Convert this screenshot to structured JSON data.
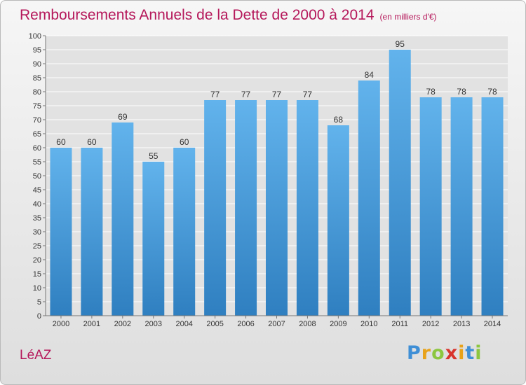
{
  "chart_data": {
    "type": "bar",
    "title": "Remboursements Annuels de la Dette de 2000 à 2014",
    "unit_label": "(en milliers d'€)",
    "categories": [
      "2000",
      "2001",
      "2002",
      "2003",
      "2004",
      "2005",
      "2006",
      "2007",
      "2008",
      "2009",
      "2010",
      "2011",
      "2012",
      "2013",
      "2014"
    ],
    "values": [
      60,
      60,
      69,
      55,
      60,
      77,
      77,
      77,
      77,
      68,
      84,
      95,
      78,
      78,
      78
    ],
    "ylim": [
      0,
      100
    ],
    "ytick_step": 5,
    "grid": true,
    "bar_color_top": "#62b3ec",
    "bar_color_bottom": "#2f7fc0"
  },
  "commune": "LéAZ",
  "logo": {
    "letters": [
      "P",
      "r",
      "o",
      "x",
      "i",
      "t",
      "i"
    ],
    "colors": [
      "#3f8fd6",
      "#e8a21a",
      "#8cc63e",
      "#d8342c",
      "#e8a21a",
      "#3f8fd6",
      "#8cc63e"
    ]
  }
}
